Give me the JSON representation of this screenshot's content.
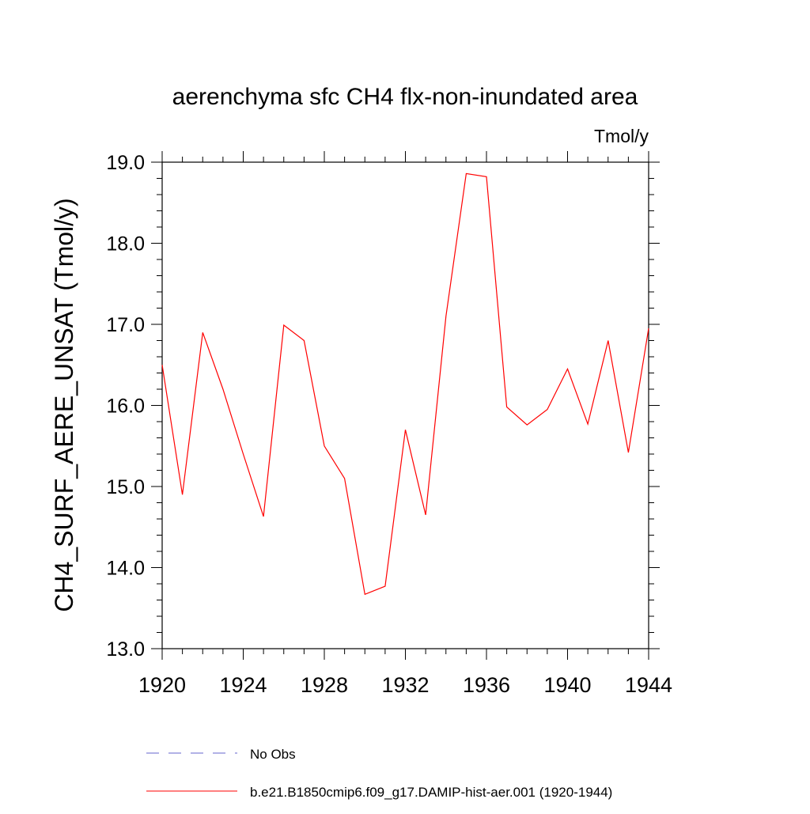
{
  "chart_data": {
    "type": "line",
    "title": "aerenchyma sfc CH4 flx-non-inundated area",
    "units": "Tmol/y",
    "ylabel": "CH4_SURF_AERE_UNSAT  (Tmol/y)",
    "xlabel": "",
    "xlim": [
      1920,
      1944
    ],
    "ylim": [
      13.0,
      19.0
    ],
    "x_ticks": [
      1920,
      1924,
      1928,
      1932,
      1936,
      1940,
      1944
    ],
    "y_ticks": [
      13.0,
      14.0,
      15.0,
      16.0,
      17.0,
      18.0,
      19.0
    ],
    "x_tick_labels": [
      "1920",
      "1924",
      "1928",
      "1932",
      "1936",
      "1940",
      "1944"
    ],
    "y_tick_labels": [
      "13.0",
      "14.0",
      "15.0",
      "16.0",
      "17.0",
      "18.0",
      "19.0"
    ],
    "grid": false,
    "legend_position": "bottom",
    "series": [
      {
        "name": "b.e21.B1850cmip6.f09_g17.DAMIP-hist-aer.001 (1920-1944)",
        "color": "#ff0000",
        "style": "solid",
        "x": [
          1920,
          1921,
          1922,
          1923,
          1924,
          1925,
          1926,
          1927,
          1928,
          1929,
          1930,
          1931,
          1932,
          1933,
          1934,
          1935,
          1936,
          1937,
          1938,
          1939,
          1940,
          1941,
          1942,
          1943,
          1944
        ],
        "y": [
          16.5,
          14.9,
          16.9,
          16.2,
          15.4,
          14.63,
          16.99,
          16.8,
          15.5,
          15.1,
          13.67,
          13.77,
          15.7,
          14.65,
          17.1,
          18.86,
          18.82,
          15.98,
          15.76,
          15.95,
          16.45,
          15.77,
          16.8,
          15.42,
          16.95
        ]
      }
    ],
    "legend": [
      {
        "label": "No Obs",
        "color": "#6666cc",
        "style": "dashed"
      },
      {
        "label": "b.e21.B1850cmip6.f09_g17.DAMIP-hist-aer.001 (1920-1944)",
        "color": "#ff0000",
        "style": "solid"
      }
    ]
  }
}
